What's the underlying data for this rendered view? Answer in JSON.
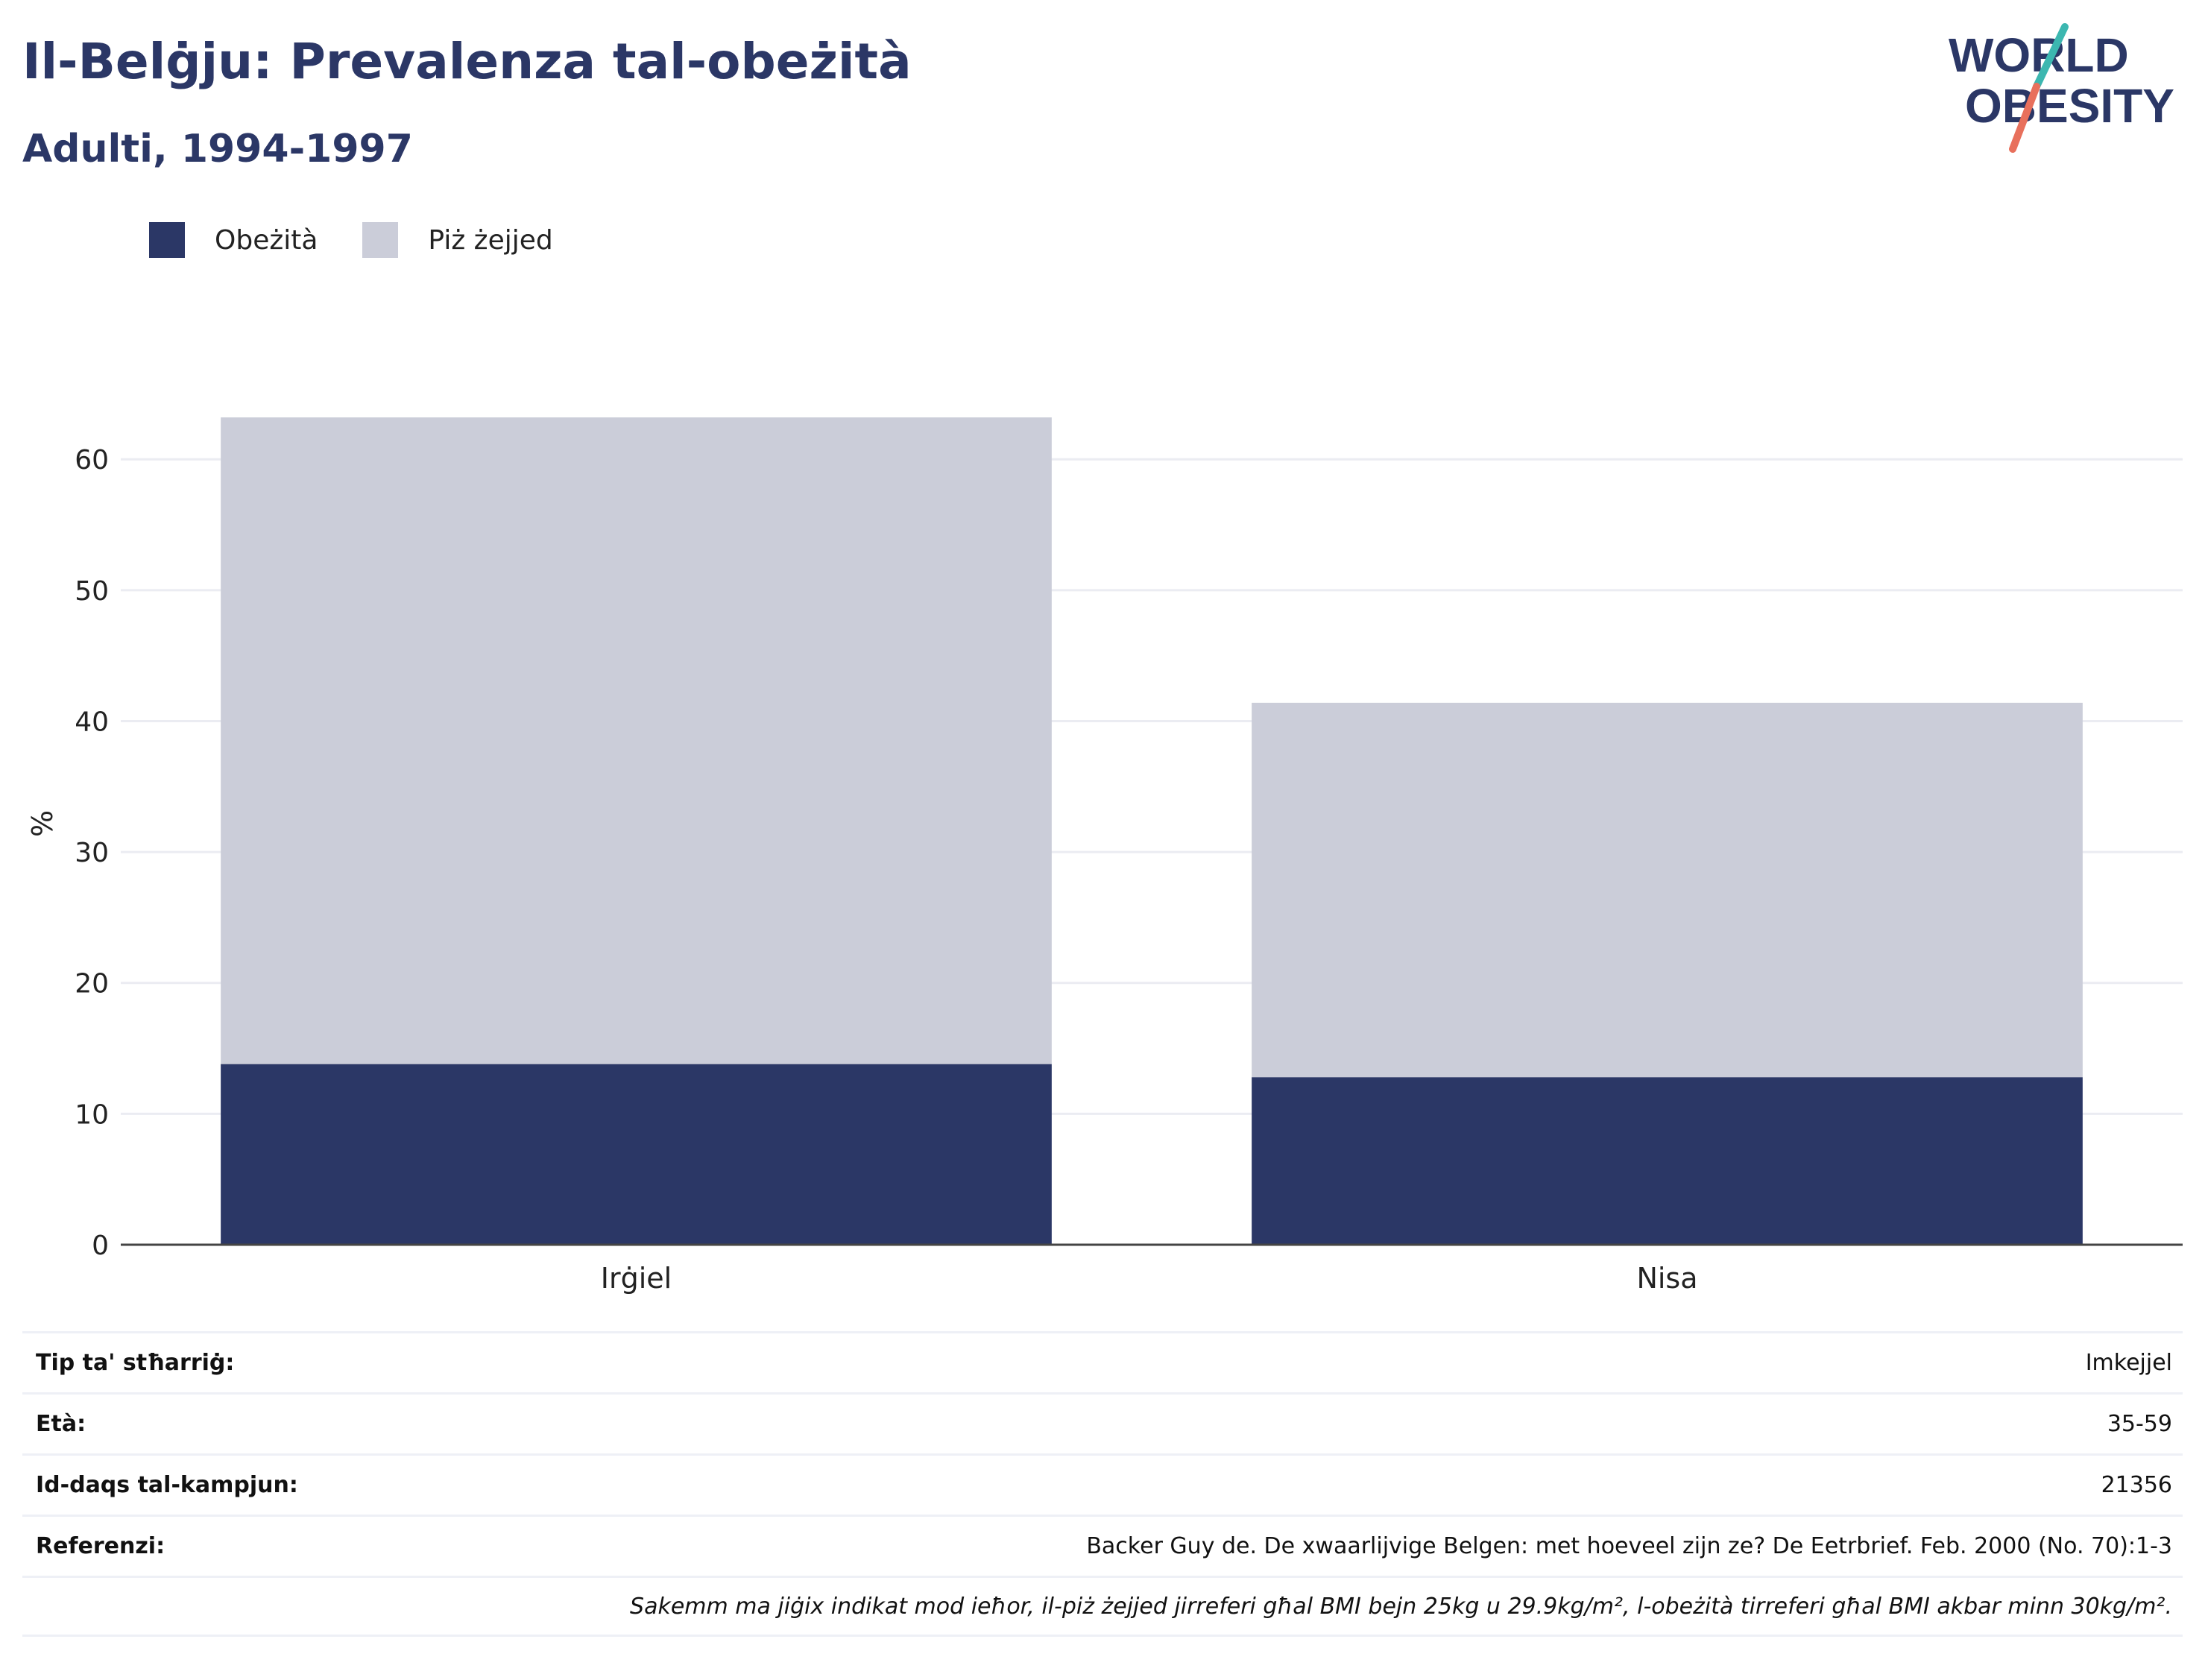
{
  "header": {
    "title": "Il-Belġju: Prevalenza tal-obeżità",
    "subtitle": "Adulti, 1994-1997"
  },
  "logo": {
    "line1": "WORLD",
    "line2": "OBESITY",
    "colors": {
      "text": "#2b3766",
      "slash_teal": "#3cb7b0",
      "slash_coral": "#e8705c"
    }
  },
  "legend": {
    "items": [
      {
        "label": "Obeżità",
        "color": "#2b3766"
      },
      {
        "label": "Piż żejjed",
        "color": "#cbcdd9"
      }
    ]
  },
  "chart_data": {
    "type": "bar",
    "stacked": true,
    "categories": [
      "Irġiel",
      "Nisa"
    ],
    "series": [
      {
        "name": "Obeżità",
        "values": [
          13.8,
          12.8
        ],
        "color": "#2b3766"
      },
      {
        "name": "Piż żejjed",
        "values": [
          49.4,
          28.6
        ],
        "color": "#cbcdd9"
      }
    ],
    "ylabel": "%",
    "ylim": [
      0,
      63.2
    ],
    "yticks": [
      0,
      10,
      20,
      30,
      40,
      50,
      60
    ],
    "grid": true,
    "legend_position": "top-left"
  },
  "info": {
    "rows": [
      {
        "label": "Tip ta' stħarriġ:",
        "value": "Imkejjel"
      },
      {
        "label": "Età:",
        "value": "35-59"
      },
      {
        "label": "Id-daqs tal-kampjun:",
        "value": "21356"
      },
      {
        "label": "Referenzi:",
        "value": "Backer Guy de. De xwaarlijvige Belgen: met hoeveel zijn ze? De Eetrbrief. Feb. 2000 (No. 70):1-3"
      }
    ],
    "note": "Sakemm ma jiġix indikat mod ieħor, il-piż żejjed jirreferi għal BMI bejn 25kg u 29.9kg/m², l-obeżità tirreferi għal BMI akbar minn 30kg/m²."
  }
}
